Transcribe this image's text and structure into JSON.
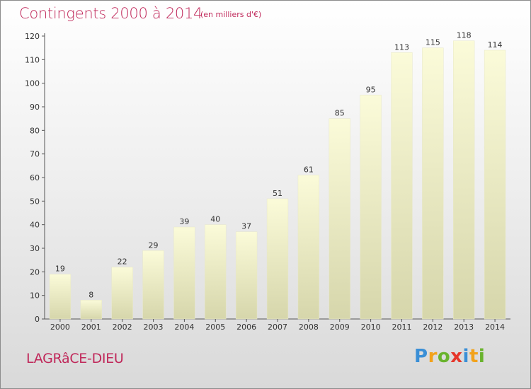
{
  "title": "Contingents 2000 à 2014",
  "subtitle": "(en milliers d'€)",
  "commune": "LAGRâCE-DIEU",
  "logo": {
    "letters": [
      "P",
      "r",
      "o",
      "x",
      "i",
      "t",
      "i"
    ],
    "colors": [
      "#3a8fd6",
      "#f2a21b",
      "#69b32d",
      "#e6362a",
      "#3a8fd6",
      "#f2a21b",
      "#69b32d"
    ]
  },
  "colors": {
    "accent": "#c0285a",
    "bar_top": "#fbfbd9",
    "bar_bottom": "#d6d6ab"
  },
  "chart_data": {
    "type": "bar",
    "categories": [
      "2000",
      "2001",
      "2002",
      "2003",
      "2004",
      "2005",
      "2006",
      "2007",
      "2008",
      "2009",
      "2010",
      "2011",
      "2012",
      "2013",
      "2014"
    ],
    "values": [
      19,
      8,
      22,
      29,
      39,
      40,
      37,
      51,
      61,
      85,
      95,
      113,
      115,
      118,
      114
    ],
    "title": "Contingents 2000 à 2014",
    "xlabel": "",
    "ylabel": "",
    "ylim": [
      0,
      120
    ],
    "yticks": [
      0,
      10,
      20,
      30,
      40,
      50,
      60,
      70,
      80,
      90,
      100,
      110,
      120
    ],
    "grid": false,
    "data_labels": true
  }
}
